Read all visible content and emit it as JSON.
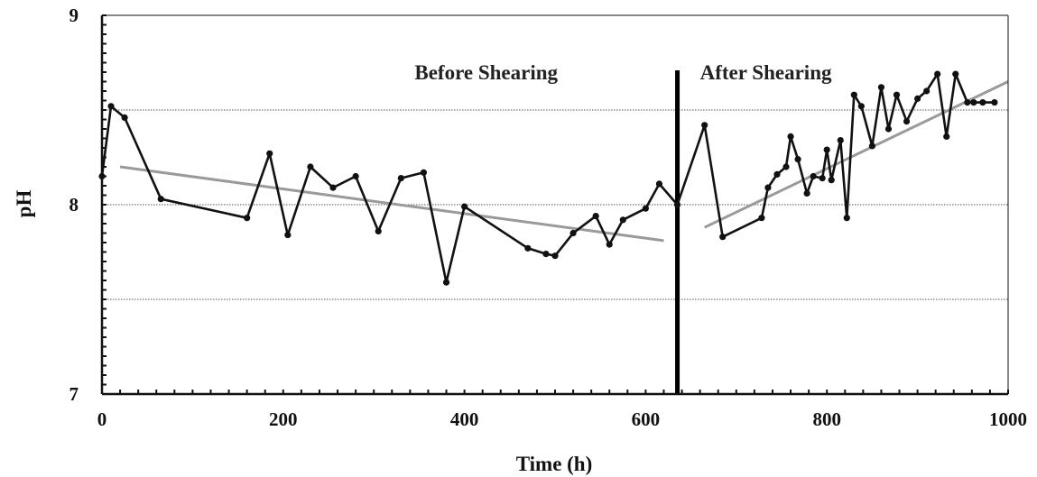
{
  "chart_data": {
    "type": "line",
    "xlabel": "Time (h)",
    "ylabel": "pH",
    "xlim": [
      0,
      1000
    ],
    "ylim": [
      7,
      9
    ],
    "xticks": [
      0,
      200,
      400,
      600,
      800,
      1000
    ],
    "yticks": [
      7,
      8,
      9
    ],
    "grid": "horizontal dotted at 7.5, 8, 8.5",
    "annotations": [
      {
        "text": "Before Shearing",
        "x": 345,
        "y": 8.7
      },
      {
        "text": "After Shearing",
        "x": 660,
        "y": 8.7
      }
    ],
    "divider_x": 635,
    "series": [
      {
        "style": "measured",
        "x": [
          0,
          10,
          25,
          65,
          160,
          185,
          205,
          230,
          255,
          280,
          305,
          330,
          355,
          380,
          400,
          470,
          490,
          500,
          520,
          545,
          560,
          575,
          600,
          615,
          635,
          665,
          685,
          728,
          735,
          745,
          755,
          760,
          768,
          778,
          785,
          795,
          800,
          805,
          815,
          822,
          830,
          838,
          850,
          860,
          868,
          877,
          888,
          900,
          910,
          922,
          932,
          942,
          955,
          962,
          972,
          985
        ],
        "y": [
          8.15,
          8.52,
          8.46,
          8.03,
          7.93,
          8.27,
          7.84,
          8.2,
          8.09,
          8.15,
          7.86,
          8.14,
          8.17,
          7.59,
          7.99,
          7.77,
          7.74,
          7.73,
          7.85,
          7.94,
          7.79,
          7.92,
          7.98,
          8.11,
          8.0,
          8.42,
          7.83,
          7.93,
          8.09,
          8.16,
          8.2,
          8.36,
          8.24,
          8.06,
          8.15,
          8.14,
          8.29,
          8.13,
          8.34,
          7.93,
          8.58,
          8.52,
          8.31,
          8.62,
          8.4,
          8.58,
          8.44,
          8.56,
          8.6,
          8.69,
          8.36,
          8.69,
          8.54,
          8.54,
          8.54,
          8.54
        ]
      },
      {
        "style": "trend",
        "segments": [
          {
            "x": [
              20,
              620
            ],
            "y": [
              8.2,
              7.81
            ]
          },
          {
            "x": [
              665,
              1000
            ],
            "y": [
              7.88,
              8.65
            ]
          }
        ]
      }
    ]
  }
}
